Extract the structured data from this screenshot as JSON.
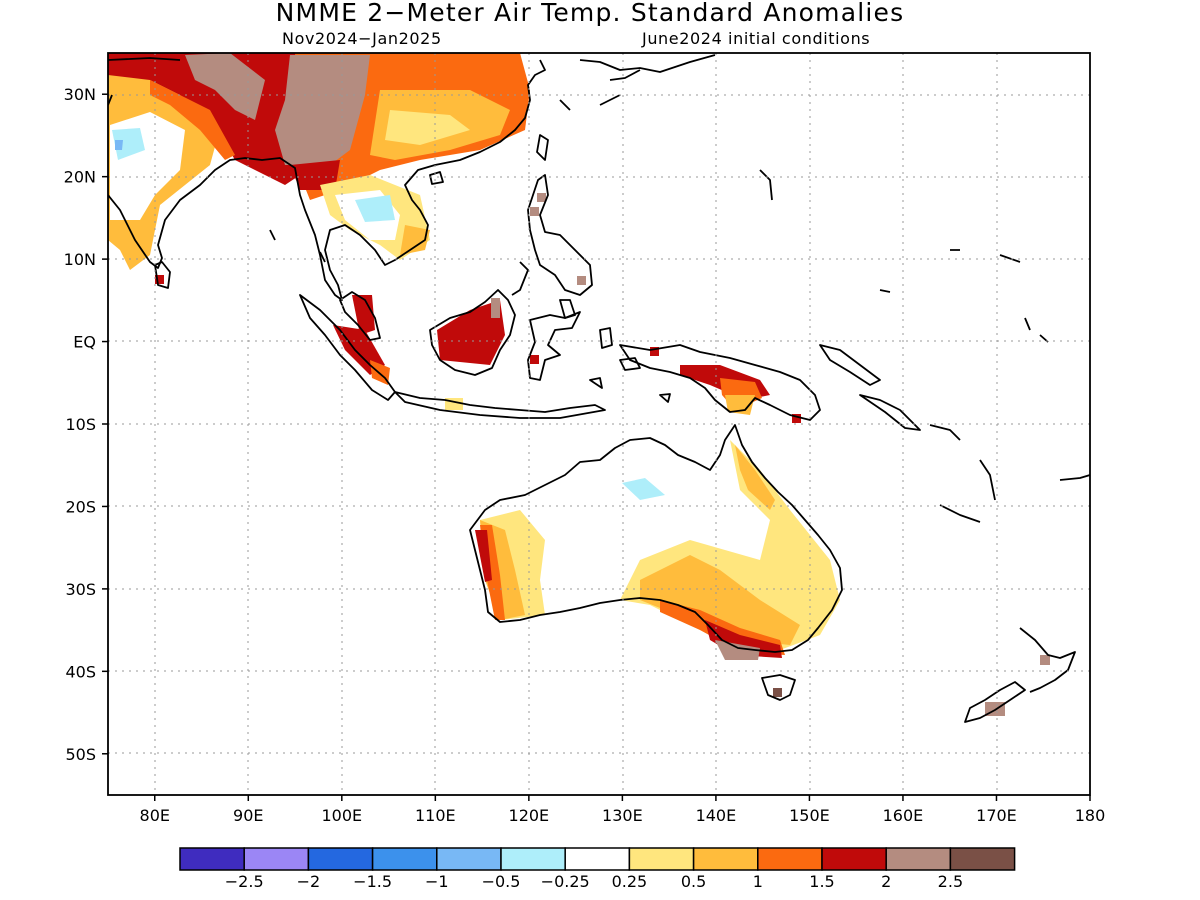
{
  "title": "NMME 2−Meter Air Temp. Standard Anomalies",
  "period": "Nov2024−Jan2025",
  "initial_conditions": "June2024 initial conditions",
  "y_ticks": [
    {
      "lat": 30,
      "label": "30N"
    },
    {
      "lat": 20,
      "label": "20N"
    },
    {
      "lat": 10,
      "label": "10N"
    },
    {
      "lat": 0,
      "label": "EQ"
    },
    {
      "lat": -10,
      "label": "10S"
    },
    {
      "lat": -20,
      "label": "20S"
    },
    {
      "lat": -30,
      "label": "30S"
    },
    {
      "lat": -40,
      "label": "40S"
    },
    {
      "lat": -50,
      "label": "50S"
    }
  ],
  "x_ticks": [
    {
      "lon": 80,
      "label": "80E"
    },
    {
      "lon": 90,
      "label": "90E"
    },
    {
      "lon": 100,
      "label": "100E"
    },
    {
      "lon": 110,
      "label": "110E"
    },
    {
      "lon": 120,
      "label": "120E"
    },
    {
      "lon": 130,
      "label": "130E"
    },
    {
      "lon": 140,
      "label": "140E"
    },
    {
      "lon": 150,
      "label": "150E"
    },
    {
      "lon": 160,
      "label": "160E"
    },
    {
      "lon": 170,
      "label": "170E"
    },
    {
      "lon": 180,
      "label": "180"
    }
  ],
  "extent": {
    "lon_min": 75,
    "lon_max": 180,
    "lat_min": -55,
    "lat_max": 35
  },
  "colorbar": {
    "colors": [
      "#3f2cbf",
      "#9b86f5",
      "#2468e0",
      "#3c91ec",
      "#78b8f5",
      "#aeeefa",
      "#ffffff",
      "#ffe67e",
      "#ffbc3c",
      "#fb6a10",
      "#c00a0a",
      "#b48c80",
      "#7a5046"
    ],
    "labels": [
      "−2.5",
      "−2",
      "−1.5",
      "−1",
      "−0.5",
      "−0.25",
      "0.25",
      "0.5",
      "1",
      "1.5",
      "2",
      "2.5"
    ]
  },
  "colors": {
    "ocean": "#ffffff",
    "coast": "#000000",
    "grid": "#999999"
  }
}
